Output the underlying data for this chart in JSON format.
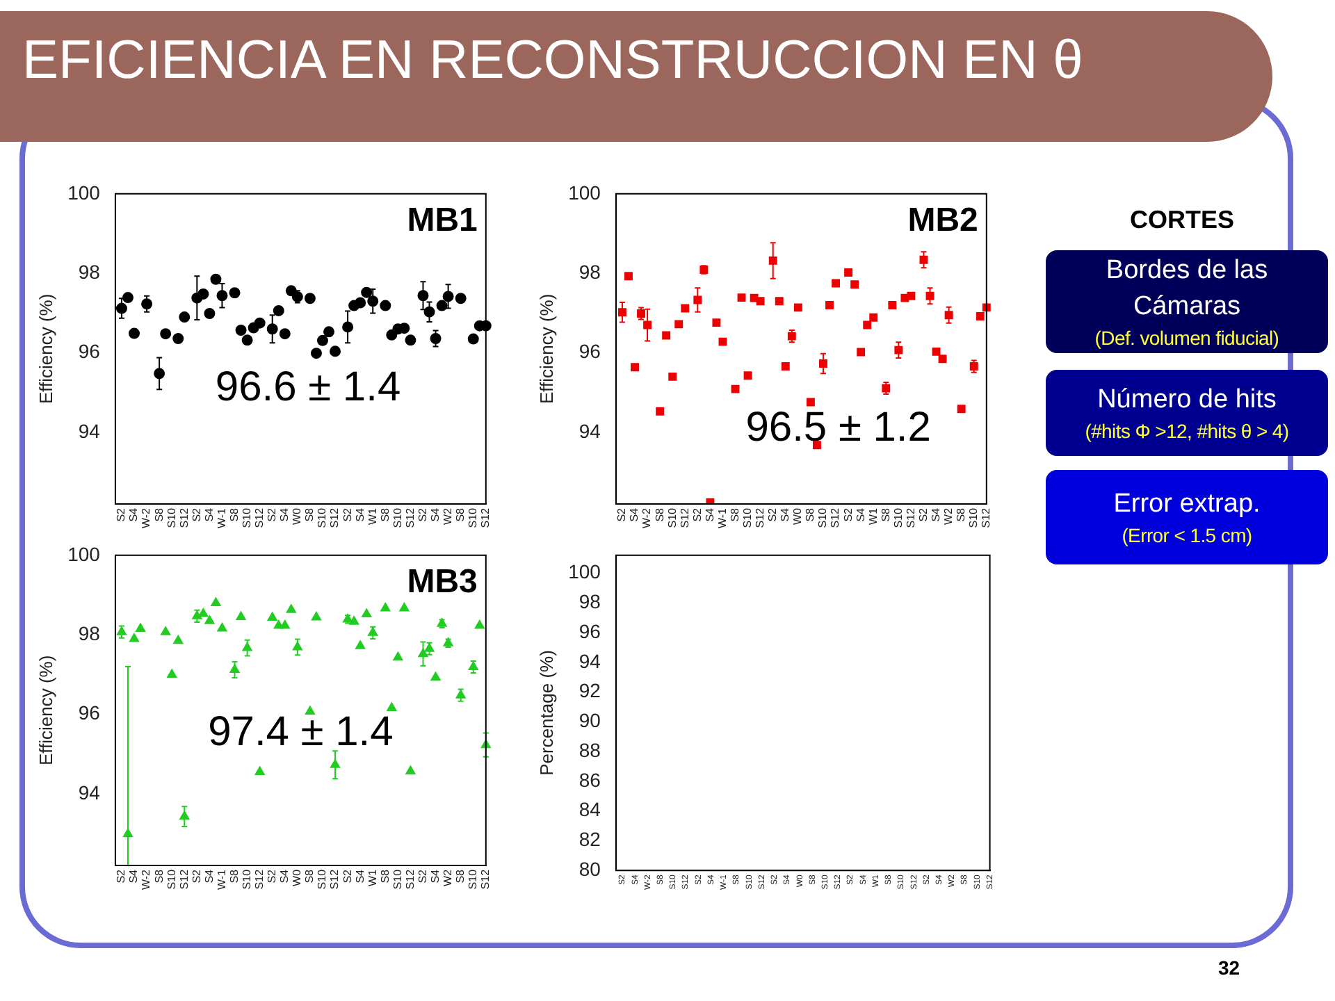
{
  "chart_data": [
    {
      "type": "other",
      "title": "EFICIENCIA EN RECONSTRUCCION EN θ",
      "annotations": [
        "CORTES",
        "Bordes de las Cámaras",
        "(Def. volumen fiducial)",
        "Número de hits",
        "(#hits Φ >12, #hits θ > 4)",
        "Error extrap.",
        "(Error < 1.5 cm)",
        "32"
      ]
    },
    {
      "type": "scatter",
      "ylabel": "Efficiency (%)",
      "annotations": [
        "MB1",
        "96.6 ± 1.4"
      ],
      "marker": "circle",
      "color": "#000000",
      "ylim": [
        92.2,
        100
      ],
      "yticks": [
        94,
        96,
        98,
        100
      ],
      "categories": [
        null,
        "S2",
        null,
        "S4",
        null,
        "W-2",
        null,
        "S8",
        null,
        "S10",
        null,
        "S12",
        null,
        "S2",
        null,
        "S4",
        null,
        "W-1",
        null,
        "S8",
        null,
        "S10",
        null,
        "S12",
        null,
        "S2",
        null,
        "S4",
        null,
        "W0",
        null,
        "S8",
        null,
        "S10",
        null,
        "S12",
        null,
        "S2",
        null,
        "S4",
        null,
        "W1",
        null,
        "S8",
        null,
        "S10",
        null,
        "S12",
        null,
        "S2",
        null,
        "S4",
        null,
        "W2",
        null,
        "S8",
        null,
        "S10",
        null,
        "S12"
      ],
      "values": [
        null,
        97.12,
        97.39,
        96.49,
        null,
        97.23,
        null,
        95.48,
        96.48,
        null,
        96.36,
        96.9,
        null,
        97.38,
        97.48,
        96.99,
        97.85,
        97.44,
        null,
        97.51,
        96.57,
        96.32,
        96.63,
        96.75,
        null,
        96.6,
        97.06,
        96.48,
        97.56,
        97.41,
        null,
        97.37,
        95.99,
        96.31,
        96.53,
        96.04,
        null,
        96.65,
        97.19,
        97.26,
        97.52,
        97.3,
        null,
        97.19,
        96.45,
        96.6,
        96.62,
        96.32,
        null,
        97.44,
        97.03,
        96.36,
        97.19,
        97.42,
        null,
        97.37,
        null,
        96.35,
        96.68,
        96.68
      ],
      "errors": [
        null,
        0.25,
        null,
        null,
        null,
        0.2,
        null,
        0.4,
        null,
        null,
        null,
        null,
        null,
        0.55,
        null,
        null,
        null,
        0.3,
        null,
        null,
        null,
        null,
        null,
        null,
        null,
        0.35,
        null,
        null,
        null,
        0.15,
        null,
        null,
        null,
        null,
        null,
        null,
        null,
        0.4,
        null,
        null,
        null,
        0.3,
        null,
        null,
        null,
        null,
        null,
        null,
        null,
        0.35,
        0.25,
        0.2,
        null,
        0.3,
        null,
        null,
        null,
        null,
        null,
        null
      ]
    },
    {
      "type": "scatter",
      "ylabel": "Efficiency (%)",
      "annotations": [
        "MB2",
        "96.5 ± 1.2"
      ],
      "marker": "square",
      "color": "#ee0000",
      "ylim": [
        92.2,
        100
      ],
      "yticks": [
        94,
        96,
        98,
        100
      ],
      "categories": [
        null,
        "S2",
        null,
        "S4",
        null,
        "W-2",
        null,
        "S8",
        null,
        "S10",
        null,
        "S12",
        null,
        "S2",
        null,
        "S4",
        null,
        "W-1",
        null,
        "S8",
        null,
        "S10",
        null,
        "S12",
        null,
        "S2",
        null,
        "S4",
        null,
        "W0",
        null,
        "S8",
        null,
        "S10",
        null,
        "S12",
        null,
        "S2",
        null,
        "S4",
        null,
        "W1",
        null,
        "S8",
        null,
        "S10",
        null,
        "S12",
        null,
        "S2",
        null,
        "S4",
        null,
        "W2",
        null,
        "S8",
        null,
        "S10",
        null,
        "S12"
      ],
      "values": [
        null,
        97.02,
        97.93,
        95.64,
        96.99,
        96.7,
        null,
        94.53,
        96.44,
        95.4,
        96.72,
        97.12,
        null,
        97.33,
        98.09,
        92.24,
        96.76,
        96.28,
        null,
        95.09,
        97.39,
        95.43,
        97.38,
        97.3,
        null,
        98.32,
        97.3,
        95.66,
        96.42,
        97.14,
        null,
        94.76,
        93.68,
        95.73,
        97.2,
        97.75,
        null,
        98.02,
        97.72,
        96.02,
        96.7,
        96.89,
        null,
        95.11,
        97.2,
        96.07,
        97.38,
        97.43,
        null,
        98.34,
        97.43,
        96.03,
        95.85,
        96.95,
        null,
        94.59,
        null,
        95.66,
        96.92,
        97.14
      ],
      "errors": [
        null,
        0.25,
        null,
        null,
        0.15,
        0.4,
        null,
        null,
        null,
        null,
        null,
        null,
        null,
        0.3,
        0.1,
        null,
        null,
        null,
        null,
        null,
        null,
        null,
        null,
        null,
        null,
        0.45,
        null,
        null,
        0.15,
        null,
        null,
        null,
        null,
        0.25,
        null,
        null,
        null,
        null,
        null,
        null,
        null,
        null,
        null,
        0.15,
        null,
        0.2,
        null,
        null,
        null,
        0.2,
        0.2,
        null,
        null,
        0.2,
        null,
        null,
        null,
        0.15,
        null,
        null
      ]
    },
    {
      "type": "scatter",
      "ylabel": "Efficiency (%)",
      "annotations": [
        "MB3",
        "97.4 ± 1.4"
      ],
      "marker": "triangle",
      "color": "#22cc22",
      "ylim": [
        92.2,
        100
      ],
      "yticks": [
        94,
        96,
        98,
        100
      ],
      "categories": [
        null,
        "S2",
        null,
        "S4",
        null,
        "W-2",
        null,
        "S8",
        null,
        "S10",
        null,
        "S12",
        null,
        "S2",
        null,
        "S4",
        null,
        "W-1",
        null,
        "S8",
        null,
        "S10",
        null,
        "S12",
        null,
        "S2",
        null,
        "S4",
        null,
        "W0",
        null,
        "S8",
        null,
        "S10",
        null,
        "S12",
        null,
        "S2",
        null,
        "S4",
        null,
        "W1",
        null,
        "S8",
        null,
        "S10",
        null,
        "S12",
        null,
        "S2",
        null,
        "S4",
        null,
        "W2",
        null,
        "S8",
        null,
        "S10",
        null,
        "S12"
      ],
      "values": [
        null,
        98.07,
        92.99,
        97.9,
        98.15,
        null,
        null,
        null,
        98.07,
        97.0,
        97.85,
        93.43,
        null,
        98.47,
        98.53,
        98.35,
        98.8,
        98.16,
        null,
        97.12,
        98.45,
        97.67,
        null,
        94.55,
        null,
        98.43,
        98.23,
        98.23,
        98.63,
        97.69,
        null,
        96.07,
        98.44,
        null,
        null,
        94.73,
        null,
        98.39,
        98.33,
        97.72,
        98.52,
        98.05,
        null,
        98.67,
        96.16,
        97.43,
        98.67,
        94.57,
        null,
        97.52,
        97.65,
        96.93,
        98.28,
        97.79,
        null,
        96.48,
        null,
        97.19,
        98.23,
        95.23
      ],
      "errors": [
        null,
        0.15,
        [
          92.2,
          97.2
        ],
        null,
        null,
        null,
        null,
        null,
        null,
        null,
        null,
        0.25,
        null,
        0.15,
        null,
        null,
        null,
        null,
        null,
        0.2,
        null,
        0.2,
        null,
        null,
        null,
        null,
        null,
        null,
        null,
        0.2,
        null,
        null,
        null,
        null,
        null,
        0.35,
        null,
        0.1,
        null,
        null,
        null,
        0.15,
        null,
        null,
        null,
        null,
        null,
        null,
        null,
        0.3,
        0.15,
        null,
        0.1,
        0.1,
        null,
        0.15,
        null,
        0.15,
        null,
        0.3
      ]
    },
    {
      "type": "scatter",
      "ylabel": "Percentage (%)",
      "ylim": [
        80,
        101.2
      ],
      "yticks": [
        80,
        82,
        84,
        86,
        88,
        90,
        92,
        94,
        96,
        98,
        100
      ],
      "categories": [
        null,
        "S2",
        null,
        "S4",
        null,
        "W-2",
        null,
        "S8",
        null,
        "S10",
        null,
        "S12",
        null,
        "S2",
        null,
        "S4",
        null,
        "W-1",
        null,
        "S8",
        null,
        "S10",
        null,
        "S12",
        null,
        "S2",
        null,
        "S4",
        null,
        "W0",
        null,
        "S8",
        null,
        "S10",
        null,
        "S12",
        null,
        "S2",
        null,
        "S4",
        null,
        "W1",
        null,
        "S8",
        null,
        "S10",
        null,
        "S12",
        null,
        "S2",
        null,
        "S4",
        null,
        "W2",
        null,
        "S8",
        null,
        "S10",
        null,
        "S12"
      ],
      "values": [
        null,
        null,
        null,
        null,
        null,
        null,
        null,
        null,
        null,
        null,
        null,
        null,
        null,
        null,
        null,
        null,
        null,
        null,
        null,
        null,
        null,
        null,
        null,
        null,
        null,
        null,
        null,
        null,
        null,
        null,
        null,
        null,
        null,
        null,
        null,
        null,
        null,
        null,
        null,
        null,
        null,
        null,
        null,
        null,
        null,
        null,
        null,
        null,
        null,
        null,
        null,
        null,
        null,
        null,
        null,
        null,
        null,
        null,
        null,
        null
      ]
    }
  ]
}
